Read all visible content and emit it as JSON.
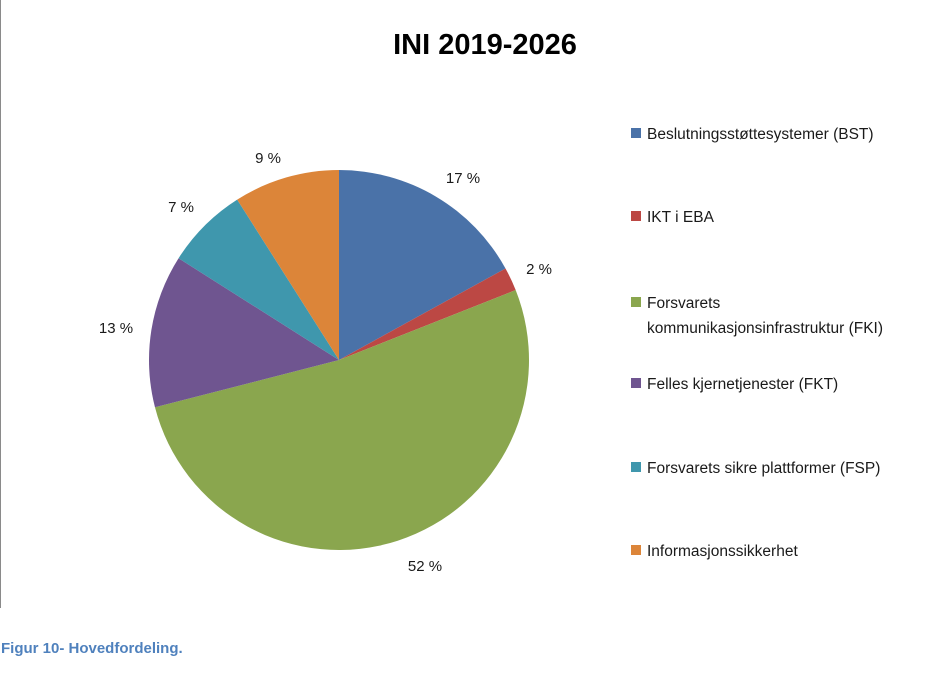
{
  "caption": "Figur 10- Hovedfordeling.",
  "chart_data": {
    "type": "pie",
    "title": "INI 2019-2026",
    "legend_position": "right",
    "slices": [
      {
        "name": "Beslutningsstøttesystemer (BST)",
        "legend_lines": [
          "Beslutningsstøttesystemer (BST)"
        ],
        "value": 17,
        "label": "17 %",
        "color": "#4a72a8"
      },
      {
        "name": "IKT i EBA",
        "legend_lines": [
          "IKT i EBA"
        ],
        "value": 2,
        "label": "2 %",
        "color": "#bc4844"
      },
      {
        "name": "Forsvarets kommunikasjonsinfrastruktur (FKI)",
        "legend_lines": [
          "Forsvarets",
          "kommunikasjonsinfrastruktur (FKI)"
        ],
        "value": 52,
        "label": "52 %",
        "color": "#8aa64e"
      },
      {
        "name": "Felles kjernetjenester (FKT)",
        "legend_lines": [
          "Felles kjernetjenester (FKT)"
        ],
        "value": 13,
        "label": "13 %",
        "color": "#6f5590"
      },
      {
        "name": "Forsvarets sikre plattformer (FSP)",
        "legend_lines": [
          "Forsvarets sikre plattformer (FSP)"
        ],
        "value": 7,
        "label": "7 %",
        "color": "#3f97ad"
      },
      {
        "name": "Informasjonssikkerhet",
        "legend_lines": [
          "Informasjonssikkerhet"
        ],
        "value": 9,
        "label": "9 %",
        "color": "#dc8539"
      }
    ]
  }
}
